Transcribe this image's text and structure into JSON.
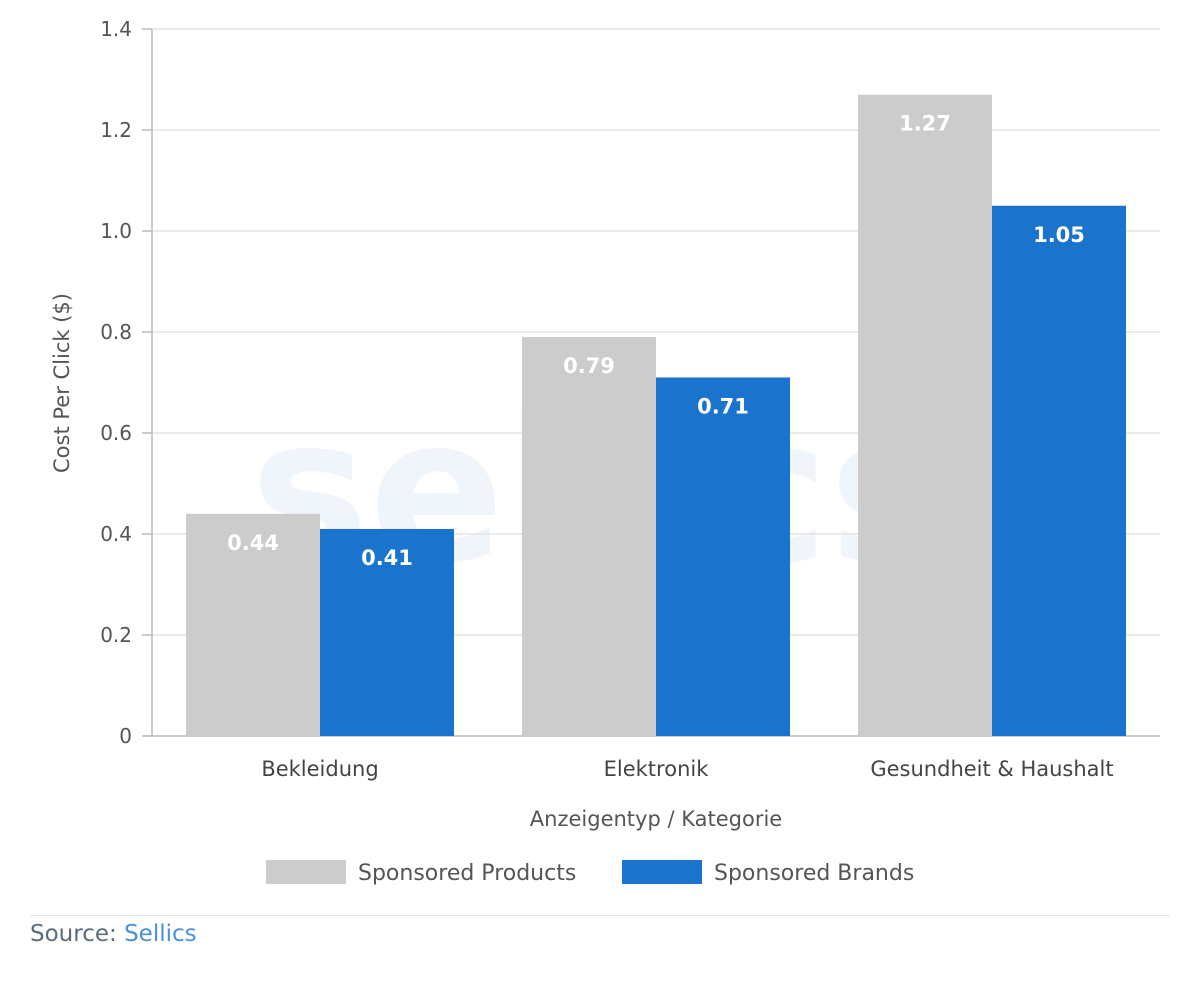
{
  "chart_data": {
    "type": "bar",
    "watermark": "sellics",
    "xlabel": "Anzeigentyp / Kategorie",
    "ylabel": "Cost Per Click ($)",
    "ylim": [
      0,
      1.4
    ],
    "yticks": [
      0,
      0.2,
      0.4,
      0.6,
      0.8,
      1.0,
      1.2,
      1.4
    ],
    "ytick_labels": [
      "0",
      "0.2",
      "0.4",
      "0.6",
      "0.8",
      "1.0",
      "1.2",
      "1.4"
    ],
    "categories": [
      "Bekleidung",
      "Elektronik",
      "Gesundheit & Haushalt"
    ],
    "series": [
      {
        "name": "Sponsored Products",
        "color": "#cccccc",
        "values": [
          0.44,
          0.79,
          1.27
        ],
        "labels": [
          "0.44",
          "0.79",
          "1.27"
        ]
      },
      {
        "name": "Sponsored Brands",
        "color": "#1a73cc",
        "values": [
          0.41,
          0.71,
          1.05
        ],
        "labels": [
          "0.41",
          "0.71",
          "1.05"
        ]
      }
    ],
    "grid": true,
    "legend_position": "bottom-center"
  },
  "source": {
    "prefix": "Source: ",
    "name": "Sellics"
  }
}
